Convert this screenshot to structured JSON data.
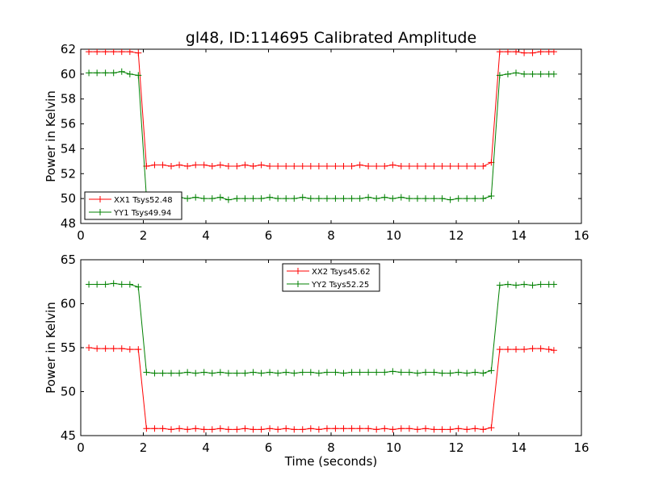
{
  "figure": {
    "title": "gl48, ID:114695 Calibrated Amplitude"
  },
  "chart_data": [
    {
      "type": "line",
      "title": "gl48, ID:114695 Calibrated Amplitude",
      "xlabel": "",
      "ylabel": "Power in Kelvin",
      "xlim": [
        0,
        16
      ],
      "ylim": [
        48,
        62
      ],
      "xticks": [
        "0",
        "2",
        "4",
        "6",
        "8",
        "10",
        "12",
        "14",
        "16"
      ],
      "yticks": [
        "48",
        "50",
        "52",
        "54",
        "56",
        "58",
        "60",
        "62"
      ],
      "legend_position": "lower-left",
      "x": [
        0.26,
        0.52,
        0.79,
        1.05,
        1.31,
        1.57,
        1.84,
        2.1,
        2.36,
        2.62,
        2.89,
        3.15,
        3.41,
        3.67,
        3.94,
        4.2,
        4.46,
        4.72,
        4.99,
        5.25,
        5.51,
        5.77,
        6.04,
        6.3,
        6.56,
        6.82,
        7.09,
        7.35,
        7.61,
        7.87,
        8.14,
        8.4,
        8.66,
        8.92,
        9.19,
        9.45,
        9.71,
        9.97,
        10.24,
        10.5,
        10.76,
        11.02,
        11.29,
        11.55,
        11.81,
        12.07,
        12.34,
        12.6,
        12.86,
        13.12,
        13.39,
        13.65,
        13.91,
        14.17,
        14.44,
        14.7,
        14.96,
        15.12
      ],
      "series": [
        {
          "name": "XX1 Tsys52.48",
          "color": "#ff0000",
          "values": [
            61.8,
            61.8,
            61.8,
            61.8,
            61.8,
            61.8,
            61.7,
            52.6,
            52.7,
            52.7,
            52.6,
            52.7,
            52.6,
            52.7,
            52.7,
            52.6,
            52.7,
            52.6,
            52.6,
            52.7,
            52.6,
            52.7,
            52.6,
            52.6,
            52.6,
            52.6,
            52.6,
            52.6,
            52.6,
            52.6,
            52.6,
            52.6,
            52.6,
            52.7,
            52.6,
            52.6,
            52.6,
            52.7,
            52.6,
            52.6,
            52.6,
            52.6,
            52.6,
            52.6,
            52.6,
            52.6,
            52.6,
            52.6,
            52.6,
            52.9,
            61.8,
            61.8,
            61.8,
            61.7,
            61.7,
            61.8,
            61.8,
            61.8
          ]
        },
        {
          "name": "YY1 Tsys49.94",
          "color": "#008000",
          "values": [
            60.1,
            60.1,
            60.1,
            60.1,
            60.2,
            60.0,
            59.9,
            50.1,
            50.1,
            50.0,
            50.0,
            50.1,
            50.0,
            50.1,
            50.0,
            50.0,
            50.1,
            49.9,
            50.0,
            50.0,
            50.0,
            50.0,
            50.1,
            50.0,
            50.0,
            50.0,
            50.1,
            50.0,
            50.0,
            50.0,
            50.0,
            50.0,
            50.0,
            50.0,
            50.1,
            50.0,
            50.1,
            50.0,
            50.1,
            50.0,
            50.0,
            50.0,
            50.0,
            50.0,
            49.9,
            50.0,
            50.0,
            50.0,
            50.0,
            50.2,
            59.9,
            60.0,
            60.1,
            60.0,
            60.0,
            60.0,
            60.0,
            60.0
          ]
        }
      ]
    },
    {
      "type": "line",
      "title": "",
      "xlabel": "Time (seconds)",
      "ylabel": "Power in Kelvin",
      "xlim": [
        0,
        16
      ],
      "ylim": [
        45,
        65
      ],
      "xticks": [
        "0",
        "2",
        "4",
        "6",
        "8",
        "10",
        "12",
        "14",
        "16"
      ],
      "yticks": [
        "45",
        "50",
        "55",
        "60",
        "65"
      ],
      "legend_position": "upper-center",
      "x": [
        0.26,
        0.52,
        0.79,
        1.05,
        1.31,
        1.57,
        1.84,
        2.1,
        2.36,
        2.62,
        2.89,
        3.15,
        3.41,
        3.67,
        3.94,
        4.2,
        4.46,
        4.72,
        4.99,
        5.25,
        5.51,
        5.77,
        6.04,
        6.3,
        6.56,
        6.82,
        7.09,
        7.35,
        7.61,
        7.87,
        8.14,
        8.4,
        8.66,
        8.92,
        9.19,
        9.45,
        9.71,
        9.97,
        10.24,
        10.5,
        10.76,
        11.02,
        11.29,
        11.55,
        11.81,
        12.07,
        12.34,
        12.6,
        12.86,
        13.12,
        13.39,
        13.65,
        13.91,
        14.17,
        14.44,
        14.7,
        14.96,
        15.12
      ],
      "series": [
        {
          "name": "XX2 Tsys45.62",
          "color": "#ff0000",
          "values": [
            55.0,
            54.9,
            54.9,
            54.9,
            54.9,
            54.8,
            54.8,
            45.8,
            45.8,
            45.8,
            45.7,
            45.8,
            45.7,
            45.8,
            45.7,
            45.7,
            45.8,
            45.7,
            45.7,
            45.8,
            45.7,
            45.7,
            45.8,
            45.7,
            45.8,
            45.7,
            45.7,
            45.8,
            45.7,
            45.8,
            45.8,
            45.8,
            45.8,
            45.8,
            45.8,
            45.7,
            45.8,
            45.7,
            45.8,
            45.8,
            45.7,
            45.8,
            45.7,
            45.7,
            45.7,
            45.8,
            45.7,
            45.8,
            45.7,
            45.9,
            54.8,
            54.8,
            54.8,
            54.8,
            54.9,
            54.9,
            54.8,
            54.7
          ]
        },
        {
          "name": "YY2 Tsys52.25",
          "color": "#008000",
          "values": [
            62.2,
            62.2,
            62.2,
            62.3,
            62.2,
            62.2,
            61.9,
            52.2,
            52.1,
            52.1,
            52.1,
            52.1,
            52.2,
            52.1,
            52.2,
            52.1,
            52.2,
            52.1,
            52.1,
            52.1,
            52.2,
            52.1,
            52.2,
            52.1,
            52.2,
            52.1,
            52.2,
            52.2,
            52.1,
            52.2,
            52.2,
            52.1,
            52.2,
            52.2,
            52.2,
            52.2,
            52.2,
            52.3,
            52.2,
            52.2,
            52.1,
            52.2,
            52.2,
            52.1,
            52.1,
            52.2,
            52.1,
            52.2,
            52.1,
            52.4,
            62.1,
            62.2,
            62.1,
            62.2,
            62.1,
            62.2,
            62.2,
            62.2
          ]
        }
      ]
    }
  ]
}
